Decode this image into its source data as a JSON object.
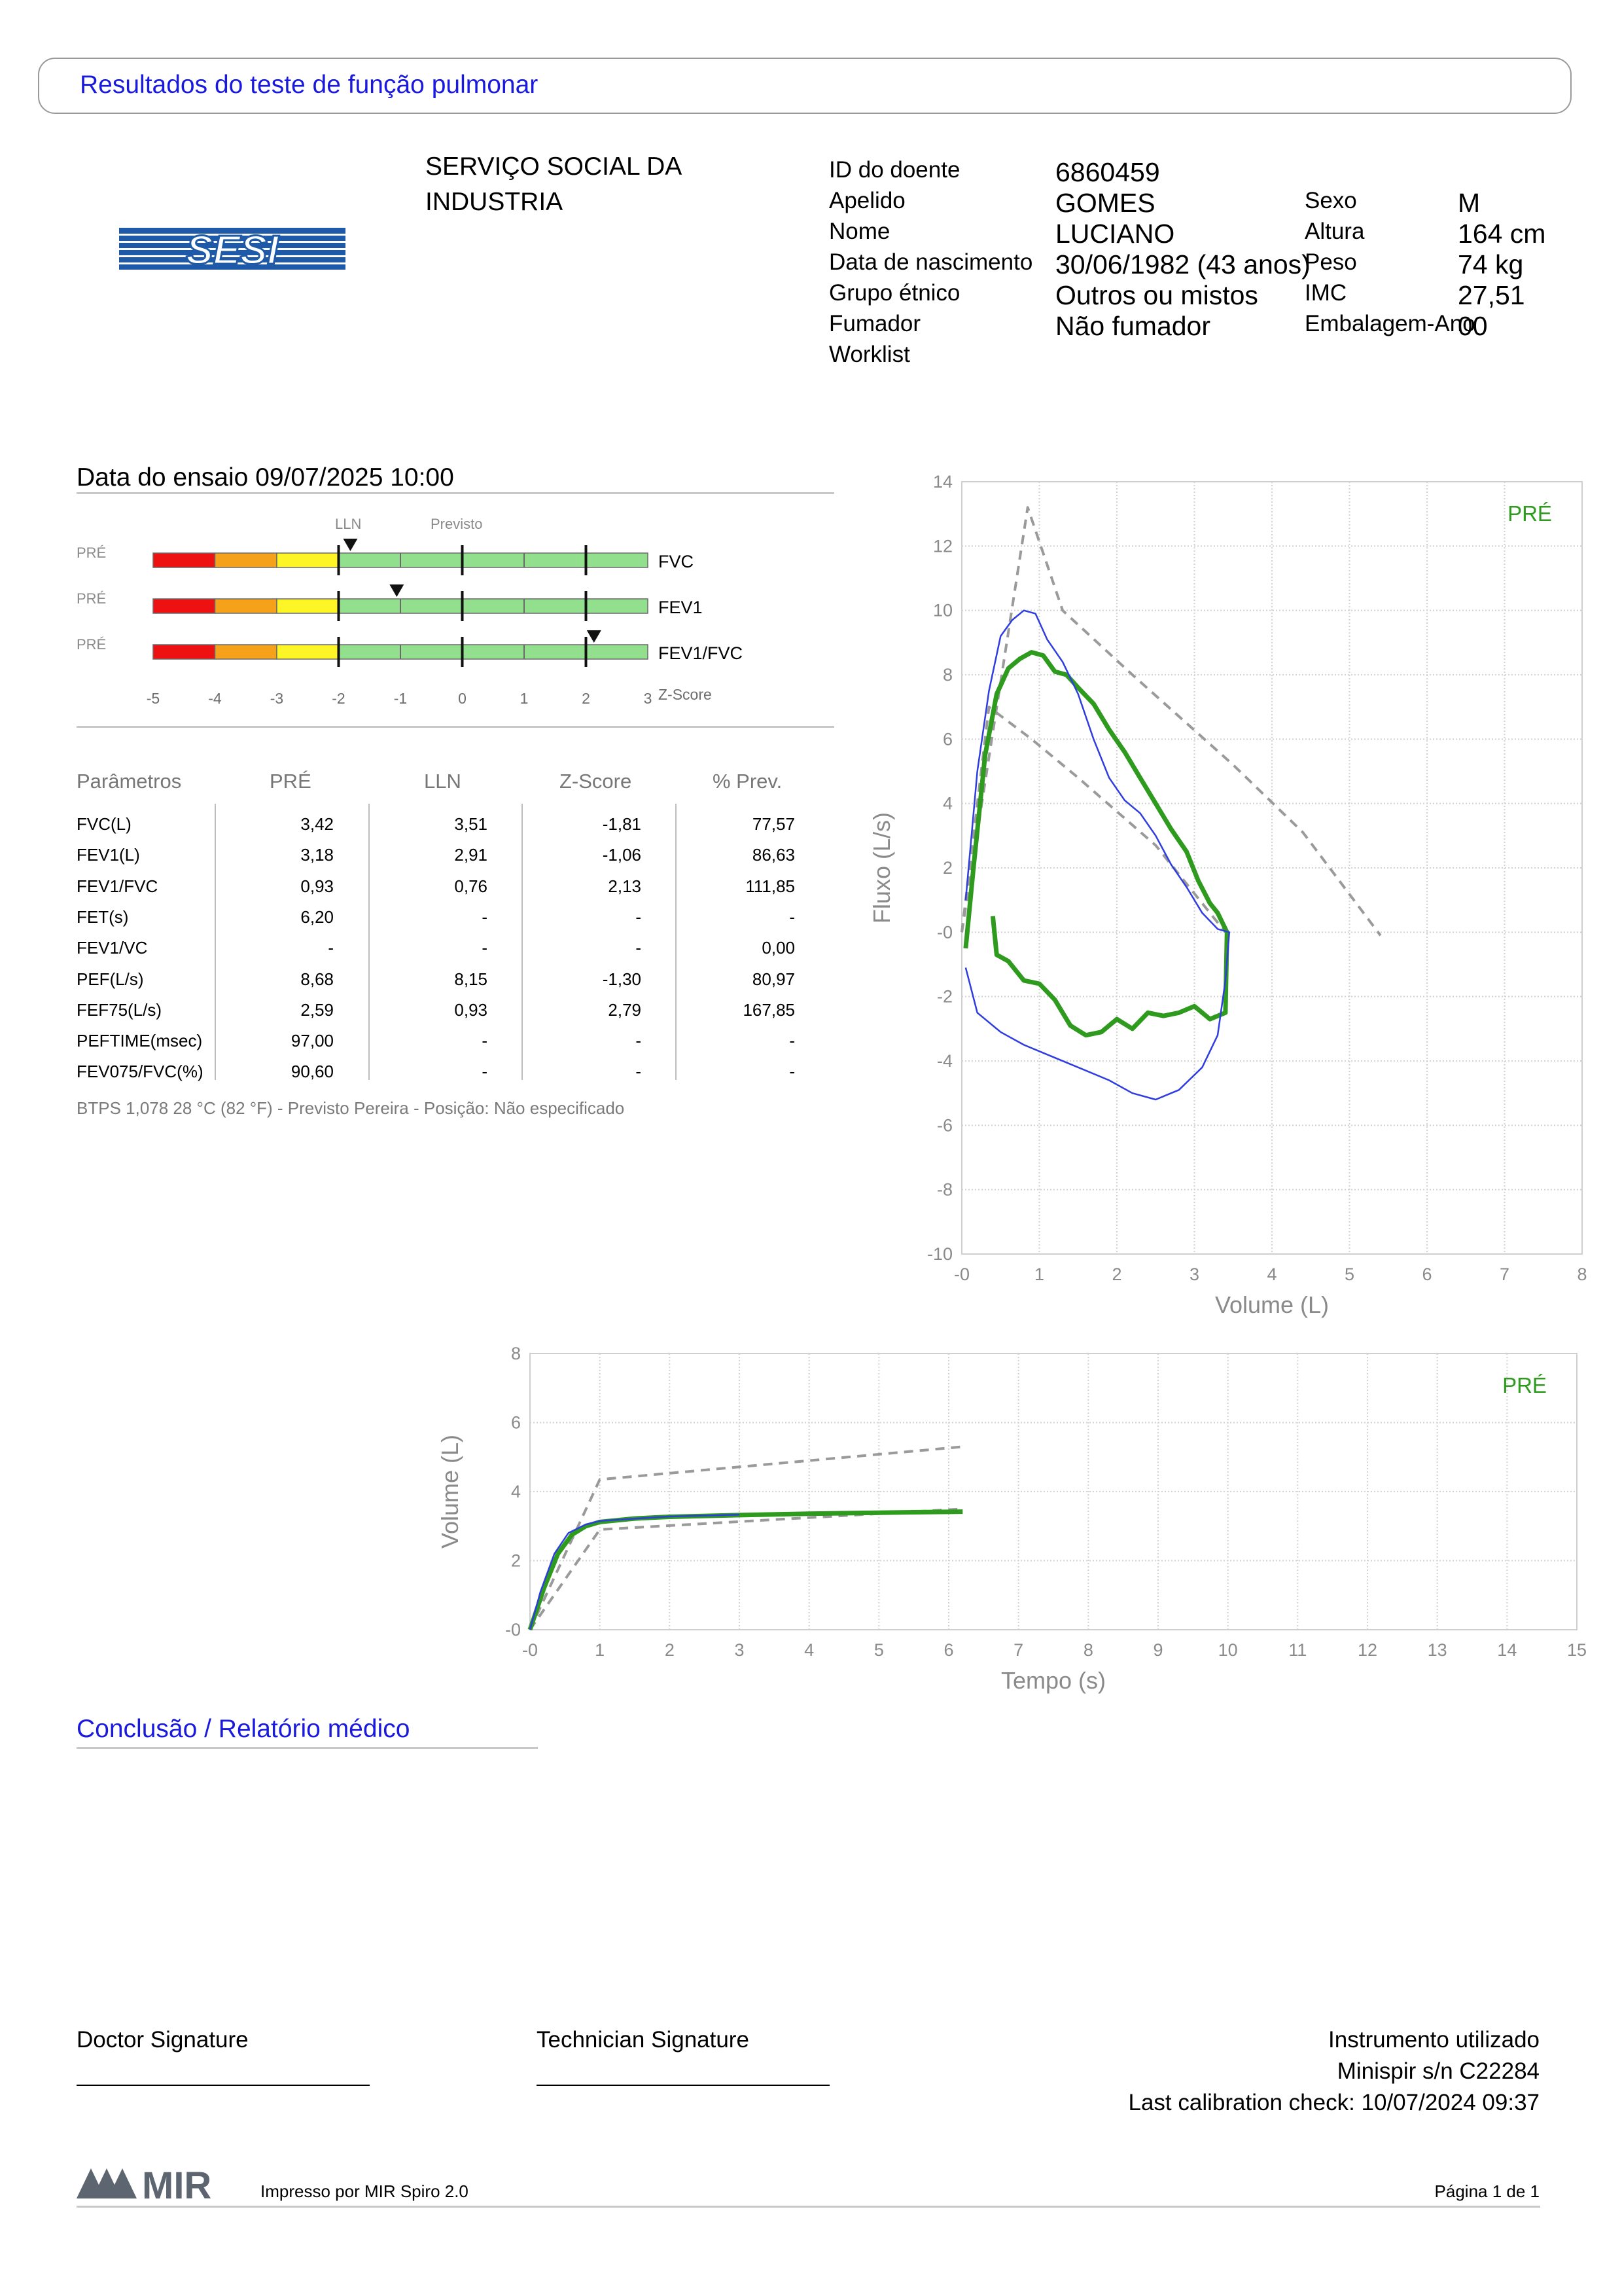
{
  "header": {
    "title": "Resultados do teste de função pulmonar"
  },
  "institution": {
    "line1": "SERVIÇO SOCIAL DA",
    "line2": "INDUSTRIA",
    "logo_text": "SESI",
    "logo_color": "#1e5aa8"
  },
  "patient": {
    "left": [
      {
        "label": "ID do doente",
        "value": "6860459"
      },
      {
        "label": "Apelido",
        "value": "GOMES"
      },
      {
        "label": "Nome",
        "value": "LUCIANO"
      },
      {
        "label": "Data de nascimento",
        "value": "30/06/1982 (43 anos)"
      },
      {
        "label": "Grupo étnico",
        "value": "Outros ou mistos"
      },
      {
        "label": "Fumador",
        "value": "Não fumador"
      },
      {
        "label": "Worklist",
        "value": ""
      }
    ],
    "right": [
      {
        "label": "Sexo",
        "value": "M"
      },
      {
        "label": "Altura",
        "value": "164 cm"
      },
      {
        "label": "Peso",
        "value": "74 kg"
      },
      {
        "label": "IMC",
        "value": "27,51"
      },
      {
        "label": "Embalagem-Ano",
        "value": "00"
      }
    ]
  },
  "test": {
    "date": "Data do ensaio 09/07/2025 10:00"
  },
  "zscore_panel": {
    "lln_label": "LLN",
    "previsto_label": "Previsto",
    "axis_label": "Z-Score",
    "ticks": [
      "-5",
      "-4",
      "-3",
      "-2",
      "-1",
      "0",
      "1",
      "2",
      "3"
    ],
    "bars": [
      {
        "tag": "PRÉ",
        "name": "FVC",
        "z": -1.81
      },
      {
        "tag": "PRÉ",
        "name": "FEV1",
        "z": -1.06
      },
      {
        "tag": "PRÉ",
        "name": "FEV1/FVC",
        "z": 2.13
      }
    ],
    "zone_colors": [
      "#ee1111",
      "#f6a11a",
      "#fdf526",
      "#92e08e"
    ]
  },
  "table": {
    "headers": [
      "Parâmetros",
      "PRÉ",
      "LLN",
      "Z-Score",
      "% Prev."
    ],
    "rows": [
      [
        "FVC(L)",
        "3,42",
        "3,51",
        "-1,81",
        "77,57"
      ],
      [
        "FEV1(L)",
        "3,18",
        "2,91",
        "-1,06",
        "86,63"
      ],
      [
        "FEV1/FVC",
        "0,93",
        "0,76",
        "2,13",
        "111,85"
      ],
      [
        "FET(s)",
        "6,20",
        "-",
        "-",
        "-"
      ],
      [
        "FEV1/VC",
        "-",
        "-",
        "-",
        "0,00"
      ],
      [
        "PEF(L/s)",
        "8,68",
        "8,15",
        "-1,30",
        "80,97"
      ],
      [
        "FEF75(L/s)",
        "2,59",
        "0,93",
        "2,79",
        "167,85"
      ],
      [
        "PEFTIME(msec)",
        "97,00",
        "-",
        "-",
        "-"
      ],
      [
        "FEV075/FVC(%)",
        "90,60",
        "-",
        "-",
        "-"
      ]
    ],
    "footnote": "BTPS 1,078 28 °C (82 °F) - Previsto Pereira - Posição: Não especificado"
  },
  "chart_data": [
    {
      "type": "line",
      "title": "",
      "xlabel": "Volume (L)",
      "ylabel": "Fluxo (L/s)",
      "xlim": [
        0,
        8
      ],
      "ylim": [
        -10,
        14
      ],
      "x_ticks": [
        "-0",
        "1",
        "2",
        "3",
        "4",
        "5",
        "6",
        "7",
        "8"
      ],
      "y_ticks": [
        "14",
        "12",
        "10",
        "8",
        "6",
        "4",
        "2",
        "-0",
        "-2",
        "-4",
        "-6",
        "-8",
        "-10"
      ],
      "legend": "PRÉ",
      "grid": true,
      "series": [
        {
          "color": "#2e9a1e",
          "points": [
            [
              0.05,
              -0.5
            ],
            [
              0.15,
              2
            ],
            [
              0.3,
              5.5
            ],
            [
              0.45,
              7.4
            ],
            [
              0.6,
              8.2
            ],
            [
              0.75,
              8.5
            ],
            [
              0.9,
              8.7
            ],
            [
              1.05,
              8.6
            ],
            [
              1.2,
              8.1
            ],
            [
              1.35,
              8.0
            ],
            [
              1.5,
              7.6
            ],
            [
              1.7,
              7.1
            ],
            [
              1.9,
              6.3
            ],
            [
              2.1,
              5.6
            ],
            [
              2.3,
              4.8
            ],
            [
              2.5,
              4.0
            ],
            [
              2.7,
              3.2
            ],
            [
              2.9,
              2.5
            ],
            [
              3.05,
              1.6
            ],
            [
              3.2,
              0.9
            ],
            [
              3.3,
              0.6
            ],
            [
              3.42,
              0.0
            ],
            [
              3.4,
              -2.5
            ],
            [
              3.2,
              -2.7
            ],
            [
              3.0,
              -2.3
            ],
            [
              2.8,
              -2.5
            ],
            [
              2.6,
              -2.6
            ],
            [
              2.4,
              -2.5
            ],
            [
              2.2,
              -3.0
            ],
            [
              2.0,
              -2.7
            ],
            [
              1.8,
              -3.1
            ],
            [
              1.6,
              -3.2
            ],
            [
              1.4,
              -2.9
            ],
            [
              1.2,
              -2.1
            ],
            [
              1.0,
              -1.6
            ],
            [
              0.8,
              -1.5
            ],
            [
              0.6,
              -0.9
            ],
            [
              0.45,
              -0.7
            ],
            [
              0.4,
              0.5
            ]
          ]
        },
        {
          "color": "#2f3de0",
          "points": [
            [
              0.05,
              1
            ],
            [
              0.2,
              5
            ],
            [
              0.35,
              7.5
            ],
            [
              0.5,
              9.2
            ],
            [
              0.65,
              9.7
            ],
            [
              0.8,
              10.0
            ],
            [
              0.95,
              9.9
            ],
            [
              1.1,
              9.1
            ],
            [
              1.3,
              8.4
            ],
            [
              1.5,
              7.4
            ],
            [
              1.7,
              6.0
            ],
            [
              1.9,
              4.8
            ],
            [
              2.1,
              4.1
            ],
            [
              2.3,
              3.7
            ],
            [
              2.5,
              3.0
            ],
            [
              2.7,
              2.1
            ],
            [
              2.9,
              1.4
            ],
            [
              3.1,
              0.6
            ],
            [
              3.3,
              0.1
            ],
            [
              3.45,
              0.0
            ],
            [
              3.4,
              -1.5
            ],
            [
              3.3,
              -3.2
            ],
            [
              3.1,
              -4.2
            ],
            [
              2.8,
              -4.9
            ],
            [
              2.5,
              -5.2
            ],
            [
              2.2,
              -5.0
            ],
            [
              1.9,
              -4.6
            ],
            [
              1.5,
              -4.2
            ],
            [
              1.1,
              -3.8
            ],
            [
              0.8,
              -3.5
            ],
            [
              0.5,
              -3.1
            ],
            [
              0.2,
              -2.5
            ],
            [
              0.05,
              -1.1
            ]
          ]
        },
        {
          "color": "#9a9a9a",
          "dashed": true,
          "points": [
            [
              0.0,
              0.0
            ],
            [
              0.85,
              13.2
            ],
            [
              1.3,
              10.0
            ],
            [
              2.2,
              8.0
            ],
            [
              3.5,
              5.2
            ],
            [
              4.4,
              3.1
            ],
            [
              5.4,
              -0.1
            ]
          ]
        },
        {
          "color": "#9a9a9a",
          "dashed": true,
          "points": [
            [
              0.0,
              0.0
            ],
            [
              0.35,
              7.0
            ],
            [
              0.9,
              6.0
            ],
            [
              1.5,
              4.8
            ],
            [
              2.5,
              2.7
            ],
            [
              3.4,
              0.0
            ]
          ]
        }
      ]
    },
    {
      "type": "line",
      "title": "",
      "xlabel": "Tempo (s)",
      "ylabel": "Volume (L)",
      "xlim": [
        0,
        15
      ],
      "ylim": [
        0,
        8
      ],
      "x_ticks": [
        "-0",
        "1",
        "2",
        "3",
        "4",
        "5",
        "6",
        "7",
        "8",
        "9",
        "10",
        "11",
        "12",
        "13",
        "14",
        "15"
      ],
      "y_ticks": [
        "8",
        "6",
        "4",
        "2",
        "-0"
      ],
      "legend": "PRÉ",
      "grid": true,
      "series": [
        {
          "color": "#2e9a1e",
          "points": [
            [
              0,
              0
            ],
            [
              0.2,
              1.2
            ],
            [
              0.4,
              2.2
            ],
            [
              0.6,
              2.75
            ],
            [
              0.8,
              3.0
            ],
            [
              1.0,
              3.12
            ],
            [
              1.5,
              3.22
            ],
            [
              2,
              3.27
            ],
            [
              3,
              3.32
            ],
            [
              4,
              3.36
            ],
            [
              5,
              3.39
            ],
            [
              6.2,
              3.42
            ]
          ]
        },
        {
          "color": "#2f3de0",
          "points": [
            [
              0,
              0
            ],
            [
              0.15,
              1.1
            ],
            [
              0.35,
              2.2
            ],
            [
              0.55,
              2.8
            ],
            [
              0.8,
              3.05
            ],
            [
              1.0,
              3.15
            ],
            [
              2,
              3.28
            ],
            [
              3,
              3.33
            ]
          ]
        },
        {
          "color": "#9a9a9a",
          "dashed": true,
          "points": [
            [
              0,
              0
            ],
            [
              1.0,
              4.35
            ],
            [
              6.2,
              5.3
            ]
          ]
        },
        {
          "color": "#9a9a9a",
          "dashed": true,
          "points": [
            [
              0,
              0
            ],
            [
              1.0,
              2.9
            ],
            [
              6.2,
              3.5
            ]
          ]
        }
      ]
    }
  ],
  "conclusion": {
    "title": "Conclusão / Relatório médico"
  },
  "signatures": {
    "doctor": "Doctor Signature",
    "technician": "Technician Signature"
  },
  "instrument": {
    "line1": "Instrumento utilizado",
    "line2": "Minispir s/n C22284",
    "line3": "Last calibration check: 10/07/2024 09:37"
  },
  "footer": {
    "logo": "MIR",
    "printed_by": "Impresso por MIR Spiro 2.0",
    "page": "Página 1 de 1",
    "logo_color": "#5d6670"
  }
}
